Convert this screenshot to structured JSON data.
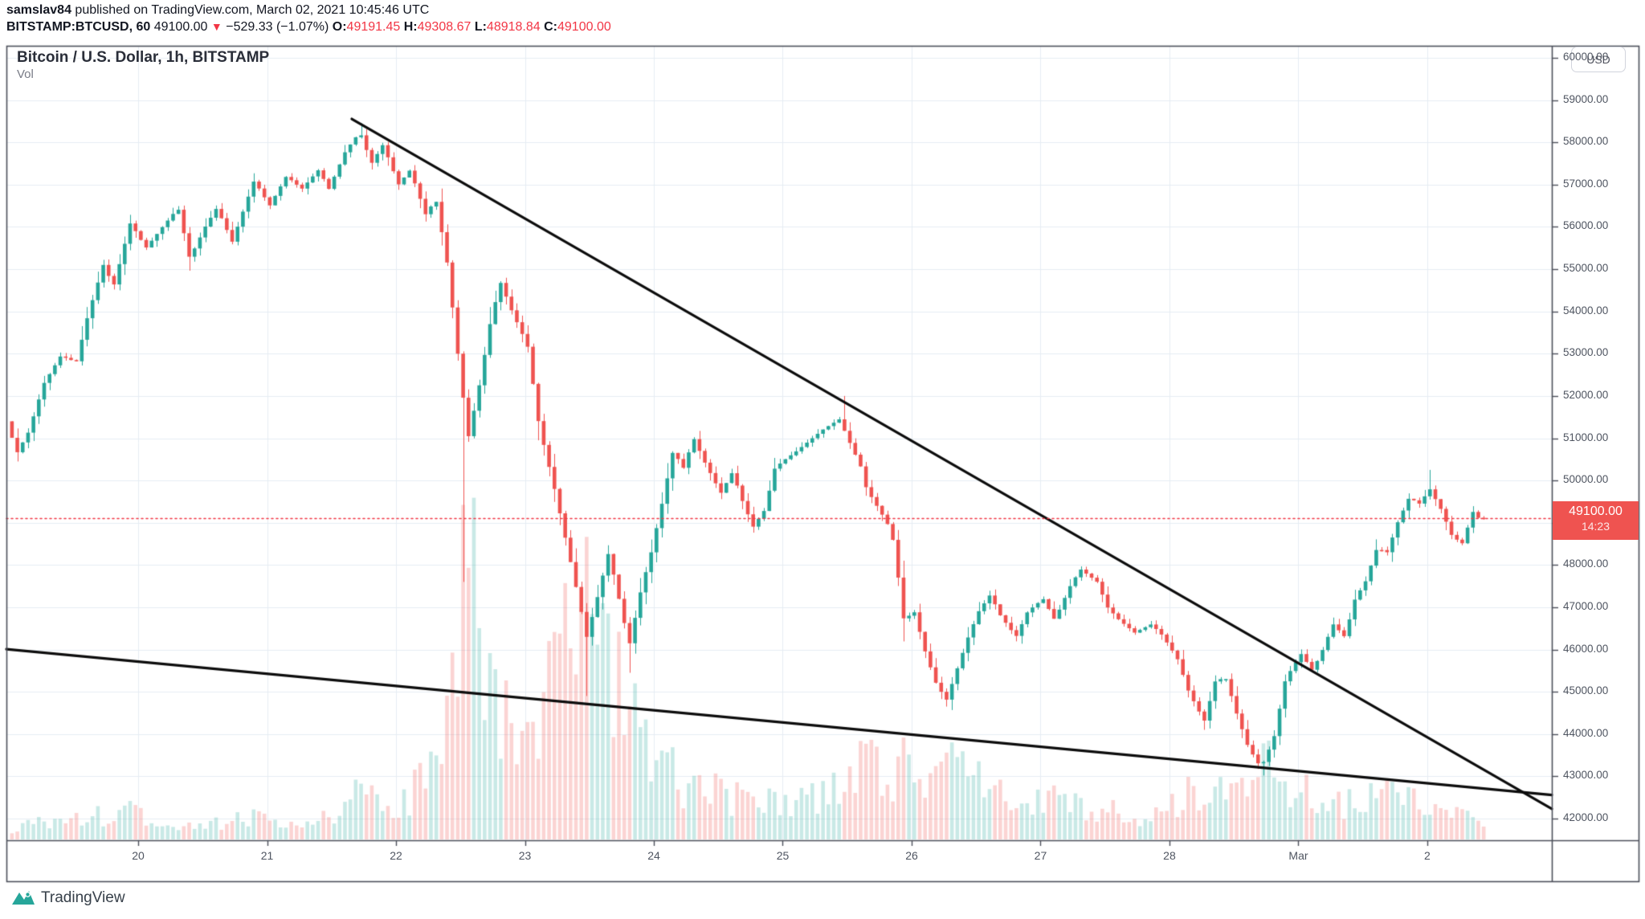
{
  "header": {
    "byline_user": "samslav84",
    "byline_rest": " published on TradingView.com, March 02, 2021 10:45:46 UTC",
    "symbol_interval": "BITSTAMP:BTCUSD, 60",
    "last_price": "49100.00",
    "down_triangle": "▼",
    "change": "−529.33 (−1.07%)",
    "o_label": "O:",
    "o_value": "49191.45",
    "h_label": "H:",
    "h_value": "49308.67",
    "l_label": "L:",
    "l_value": "48918.84",
    "c_label": "C:",
    "c_value": "49100.00"
  },
  "chart": {
    "title": "Bitcoin / U.S. Dollar, 1h, BITSTAMP",
    "vol_label": "Vol",
    "currency_button": "USD"
  },
  "price_tag": {
    "price": "49100.00",
    "countdown": "14:23"
  },
  "footer": {
    "brand": "TradingView"
  },
  "colors": {
    "up": "#26a69a",
    "down": "#ef5350",
    "grid": "#e6edf3",
    "frame": "#4c4f5a",
    "axis_text": "#4f5561",
    "accent_red": "#f23645",
    "trendline": "#0c0c0c",
    "brand_teal": "#26a69a"
  },
  "chart_data": {
    "type": "candlestick",
    "title": "Bitcoin / U.S. Dollar, 1h, BITSTAMP",
    "symbol": "BITSTAMP:BTCUSD",
    "interval_minutes": 60,
    "grid": true,
    "legend_position": "none",
    "ylim": [
      41487,
      60285
    ],
    "xlim_days": [
      18.978,
      30.966
    ],
    "price_ticks": [
      42000,
      43000,
      44000,
      45000,
      46000,
      47000,
      48000,
      49000,
      50000,
      51000,
      52000,
      53000,
      54000,
      55000,
      56000,
      57000,
      58000,
      59000,
      60000
    ],
    "time_ticks": [
      {
        "day": 20,
        "label": "20"
      },
      {
        "day": 21,
        "label": "21"
      },
      {
        "day": 22,
        "label": "22"
      },
      {
        "day": 23,
        "label": "23"
      },
      {
        "day": 24,
        "label": "24"
      },
      {
        "day": 25,
        "label": "25"
      },
      {
        "day": 26,
        "label": "26"
      },
      {
        "day": 27,
        "label": "27"
      },
      {
        "day": 28,
        "label": "28"
      },
      {
        "day": 29,
        "label": "Mar"
      },
      {
        "day": 30,
        "label": "2"
      }
    ],
    "last_price": 49100.0,
    "last_price_line_style": "dotted",
    "candle_step_days": 0.0416667,
    "close_path_anchors": [
      [
        19.0,
        51400
      ],
      [
        19.08,
        50650
      ],
      [
        19.17,
        51150
      ],
      [
        19.29,
        52300
      ],
      [
        19.42,
        52950
      ],
      [
        19.54,
        52800
      ],
      [
        19.63,
        53900
      ],
      [
        19.75,
        55100
      ],
      [
        19.83,
        54600
      ],
      [
        19.96,
        56100
      ],
      [
        20.08,
        55500
      ],
      [
        20.21,
        56000
      ],
      [
        20.33,
        56450
      ],
      [
        20.42,
        55250
      ],
      [
        20.54,
        56000
      ],
      [
        20.63,
        56450
      ],
      [
        20.75,
        55650
      ],
      [
        20.92,
        57100
      ],
      [
        21.04,
        56500
      ],
      [
        21.17,
        57200
      ],
      [
        21.29,
        56900
      ],
      [
        21.42,
        57350
      ],
      [
        21.5,
        56900
      ],
      [
        21.63,
        57800
      ],
      [
        21.74,
        58250
      ],
      [
        21.83,
        57500
      ],
      [
        21.92,
        57950
      ],
      [
        22.04,
        57000
      ],
      [
        22.13,
        57350
      ],
      [
        22.25,
        56300
      ],
      [
        22.33,
        56650
      ],
      [
        22.42,
        55100
      ],
      [
        22.5,
        53000
      ],
      [
        22.58,
        51000
      ],
      [
        22.67,
        52300
      ],
      [
        22.75,
        53700
      ],
      [
        22.83,
        54700
      ],
      [
        22.92,
        54000
      ],
      [
        23.04,
        53200
      ],
      [
        23.13,
        51300
      ],
      [
        23.25,
        49800
      ],
      [
        23.38,
        48000
      ],
      [
        23.5,
        46300
      ],
      [
        23.58,
        47200
      ],
      [
        23.67,
        48300
      ],
      [
        23.75,
        47200
      ],
      [
        23.83,
        46100
      ],
      [
        23.92,
        47400
      ],
      [
        24.0,
        48300
      ],
      [
        24.08,
        49400
      ],
      [
        24.17,
        50700
      ],
      [
        24.25,
        50300
      ],
      [
        24.33,
        51000
      ],
      [
        24.42,
        50400
      ],
      [
        24.54,
        49700
      ],
      [
        24.63,
        50200
      ],
      [
        24.71,
        49500
      ],
      [
        24.79,
        48900
      ],
      [
        24.88,
        49300
      ],
      [
        24.96,
        50300
      ],
      [
        25.04,
        50500
      ],
      [
        25.13,
        50700
      ],
      [
        25.25,
        51000
      ],
      [
        25.33,
        51200
      ],
      [
        25.46,
        51450
      ],
      [
        25.54,
        50900
      ],
      [
        25.63,
        50300
      ],
      [
        25.67,
        49800
      ],
      [
        25.75,
        49400
      ],
      [
        25.83,
        49000
      ],
      [
        25.88,
        48550
      ],
      [
        25.96,
        46700
      ],
      [
        26.04,
        46900
      ],
      [
        26.13,
        45900
      ],
      [
        26.21,
        45200
      ],
      [
        26.29,
        44800
      ],
      [
        26.38,
        45600
      ],
      [
        26.46,
        46300
      ],
      [
        26.54,
        46900
      ],
      [
        26.63,
        47300
      ],
      [
        26.71,
        46800
      ],
      [
        26.83,
        46300
      ],
      [
        26.92,
        46900
      ],
      [
        27.04,
        47200
      ],
      [
        27.13,
        46700
      ],
      [
        27.25,
        47500
      ],
      [
        27.33,
        47900
      ],
      [
        27.46,
        47600
      ],
      [
        27.54,
        47000
      ],
      [
        27.63,
        46700
      ],
      [
        27.75,
        46400
      ],
      [
        27.88,
        46600
      ],
      [
        27.96,
        46350
      ],
      [
        28.08,
        45800
      ],
      [
        28.17,
        45000
      ],
      [
        28.29,
        44300
      ],
      [
        28.38,
        45300
      ],
      [
        28.46,
        45300
      ],
      [
        28.54,
        44500
      ],
      [
        28.63,
        43700
      ],
      [
        28.73,
        43200
      ],
      [
        28.83,
        43900
      ],
      [
        28.92,
        45300
      ],
      [
        29.04,
        45900
      ],
      [
        29.13,
        45500
      ],
      [
        29.21,
        46000
      ],
      [
        29.29,
        46600
      ],
      [
        29.38,
        46300
      ],
      [
        29.46,
        47200
      ],
      [
        29.54,
        47600
      ],
      [
        29.63,
        48400
      ],
      [
        29.71,
        48300
      ],
      [
        29.79,
        49000
      ],
      [
        29.88,
        49600
      ],
      [
        29.96,
        49450
      ],
      [
        30.04,
        49800
      ],
      [
        30.13,
        49300
      ],
      [
        30.21,
        48700
      ],
      [
        30.29,
        48500
      ],
      [
        30.38,
        49300
      ],
      [
        30.42,
        49100
      ]
    ],
    "extreme_wick_lows": [
      [
        19.08,
        50450
      ],
      [
        22.54,
        47600
      ],
      [
        23.5,
        44900
      ],
      [
        23.83,
        45450
      ],
      [
        26.29,
        44650
      ],
      [
        28.29,
        44100
      ],
      [
        28.71,
        43020
      ]
    ],
    "extreme_wick_highs": [
      [
        21.74,
        58450
      ],
      [
        25.47,
        52000
      ],
      [
        30.02,
        50250
      ]
    ],
    "volume_profile_anchors": [
      [
        19.0,
        14
      ],
      [
        19.2,
        22
      ],
      [
        19.4,
        18
      ],
      [
        19.6,
        28
      ],
      [
        19.8,
        30
      ],
      [
        19.95,
        38
      ],
      [
        20.1,
        24
      ],
      [
        20.3,
        20
      ],
      [
        20.5,
        16
      ],
      [
        20.7,
        24
      ],
      [
        20.9,
        30
      ],
      [
        21.1,
        22
      ],
      [
        21.3,
        26
      ],
      [
        21.5,
        24
      ],
      [
        21.7,
        58
      ],
      [
        21.9,
        40
      ],
      [
        22.1,
        50
      ],
      [
        22.3,
        130
      ],
      [
        22.45,
        230
      ],
      [
        22.54,
        430
      ],
      [
        22.62,
        260
      ],
      [
        22.75,
        190
      ],
      [
        22.9,
        120
      ],
      [
        23.05,
        140
      ],
      [
        23.2,
        200
      ],
      [
        23.33,
        280
      ],
      [
        23.5,
        330
      ],
      [
        23.62,
        220
      ],
      [
        23.75,
        160
      ],
      [
        23.88,
        140
      ],
      [
        24.0,
        95
      ],
      [
        24.2,
        70
      ],
      [
        24.4,
        60
      ],
      [
        24.6,
        50
      ],
      [
        24.8,
        55
      ],
      [
        25.0,
        45
      ],
      [
        25.2,
        50
      ],
      [
        25.45,
        65
      ],
      [
        25.6,
        95
      ],
      [
        25.8,
        85
      ],
      [
        26.0,
        90
      ],
      [
        26.2,
        100
      ],
      [
        26.4,
        75
      ],
      [
        26.6,
        65
      ],
      [
        26.8,
        45
      ],
      [
        27.0,
        50
      ],
      [
        27.2,
        45
      ],
      [
        27.4,
        40
      ],
      [
        27.6,
        32
      ],
      [
        27.8,
        28
      ],
      [
        28.0,
        45
      ],
      [
        28.2,
        60
      ],
      [
        28.45,
        55
      ],
      [
        28.6,
        70
      ],
      [
        28.73,
        95
      ],
      [
        28.9,
        65
      ],
      [
        29.05,
        55
      ],
      [
        29.2,
        40
      ],
      [
        29.4,
        45
      ],
      [
        29.55,
        50
      ],
      [
        29.7,
        62
      ],
      [
        29.85,
        45
      ],
      [
        30.0,
        40
      ],
      [
        30.15,
        30
      ],
      [
        30.3,
        25
      ],
      [
        30.42,
        20
      ]
    ],
    "trendlines": [
      {
        "name": "upper-descending-trendline",
        "from_day": 21.657,
        "from_price": 58555,
        "to_day": 30.966,
        "to_price": 42230
      },
      {
        "name": "lower-descending-trendline",
        "from_day": 18.978,
        "from_price": 46010,
        "to_day": 30.966,
        "to_price": 42560
      }
    ]
  }
}
